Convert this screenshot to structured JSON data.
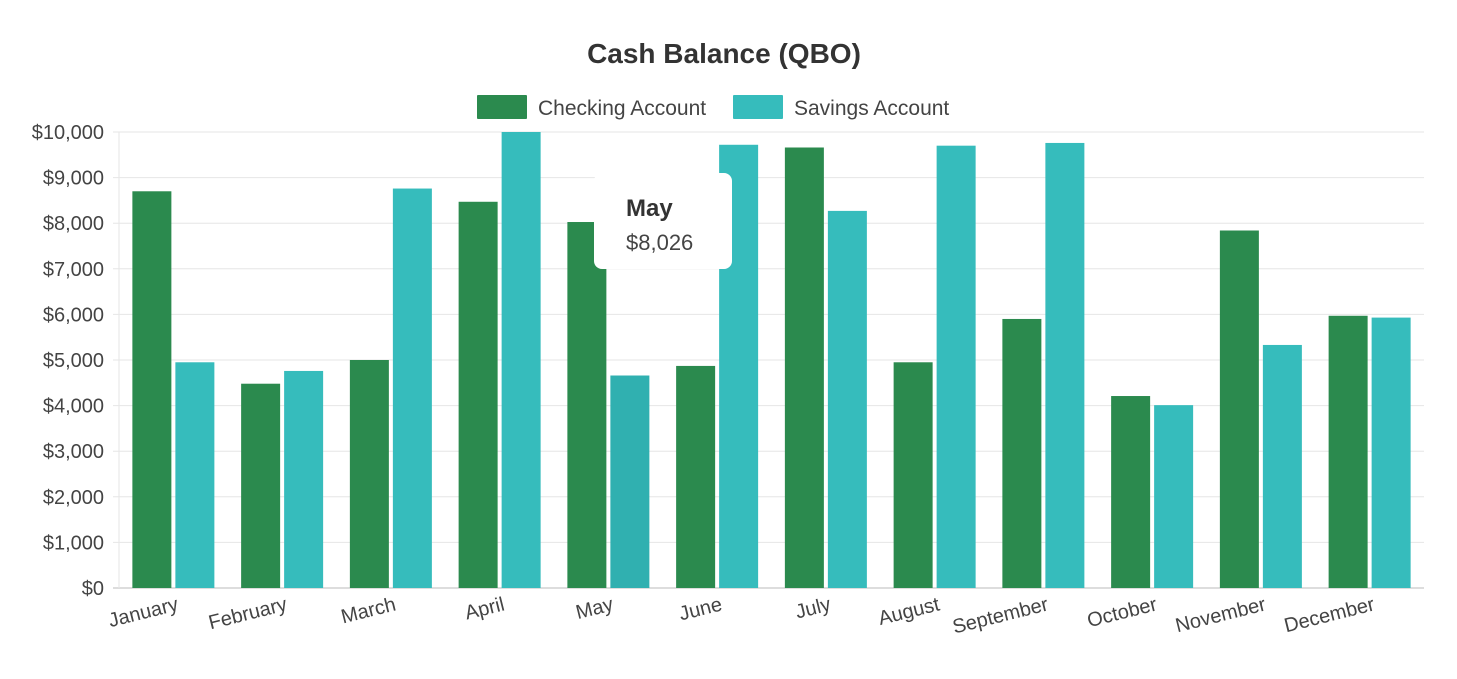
{
  "chart_data": {
    "type": "bar",
    "title": "Cash Balance (QBO)",
    "xlabel": "",
    "ylabel": "",
    "categories": [
      "January",
      "February",
      "March",
      "April",
      "May",
      "June",
      "July",
      "August",
      "September",
      "October",
      "November",
      "December"
    ],
    "series": [
      {
        "name": "Checking Account",
        "color": "#2b8a4e",
        "values": [
          8700,
          4480,
          5000,
          8470,
          8026,
          4870,
          9660,
          4950,
          5900,
          4210,
          7840,
          5970
        ]
      },
      {
        "name": "Savings Account",
        "color": "#36bcbc",
        "values": [
          4950,
          4760,
          8760,
          10000,
          4660,
          9720,
          8270,
          9700,
          9760,
          4010,
          5330,
          5930
        ]
      }
    ],
    "ylim": [
      0,
      10000
    ],
    "yticks": [
      0,
      1000,
      2000,
      3000,
      4000,
      5000,
      6000,
      7000,
      8000,
      9000,
      10000
    ],
    "ytick_labels": [
      "$0",
      "$1,000",
      "$2,000",
      "$3,000",
      "$4,000",
      "$5,000",
      "$6,000",
      "$7,000",
      "$8,000",
      "$9,000",
      "$10,000"
    ],
    "grid": true,
    "legend_position": "top",
    "highlight_color": "#30b0b0",
    "tooltip": {
      "title": "May",
      "value": "$8,026"
    }
  }
}
